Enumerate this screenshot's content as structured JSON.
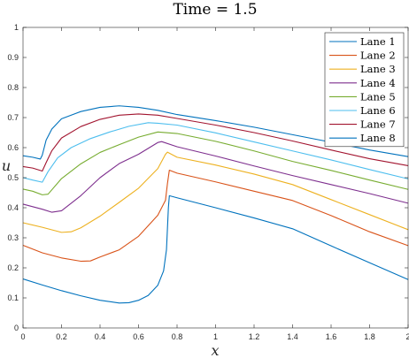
{
  "chart_data": {
    "type": "line",
    "title": "Time = 1.5",
    "xlabel": "x",
    "ylabel": "u",
    "xlim": [
      0,
      2
    ],
    "ylim": [
      0,
      1
    ],
    "grid": false,
    "legend_position": "top-right",
    "x_ticks": [
      "0",
      "0.2",
      "0.4",
      "0.6",
      "0.8",
      "1",
      "1.2",
      "1.4",
      "1.6",
      "1.8",
      "2"
    ],
    "y_ticks": [
      "0",
      "0.1",
      "0.2",
      "0.3",
      "0.4",
      "0.5",
      "0.6",
      "0.7",
      "0.8",
      "0.9",
      "1"
    ],
    "series": [
      {
        "name": "Lane 1",
        "color": "#0072BD",
        "points": [
          [
            0,
            0.163
          ],
          [
            0.1,
            0.143
          ],
          [
            0.2,
            0.124
          ],
          [
            0.3,
            0.107
          ],
          [
            0.4,
            0.092
          ],
          [
            0.5,
            0.083
          ],
          [
            0.55,
            0.084
          ],
          [
            0.6,
            0.092
          ],
          [
            0.65,
            0.108
          ],
          [
            0.7,
            0.142
          ],
          [
            0.73,
            0.19
          ],
          [
            0.745,
            0.26
          ],
          [
            0.75,
            0.33
          ],
          [
            0.755,
            0.4
          ],
          [
            0.76,
            0.44
          ],
          [
            0.8,
            0.433
          ],
          [
            1,
            0.4
          ],
          [
            1.2,
            0.366
          ],
          [
            1.4,
            0.33
          ],
          [
            1.6,
            0.273
          ],
          [
            1.8,
            0.217
          ],
          [
            2,
            0.161
          ]
        ]
      },
      {
        "name": "Lane 2",
        "color": "#D95319",
        "points": [
          [
            0,
            0.275
          ],
          [
            0.1,
            0.25
          ],
          [
            0.2,
            0.233
          ],
          [
            0.3,
            0.222
          ],
          [
            0.35,
            0.223
          ],
          [
            0.4,
            0.236
          ],
          [
            0.5,
            0.26
          ],
          [
            0.6,
            0.305
          ],
          [
            0.7,
            0.375
          ],
          [
            0.74,
            0.425
          ],
          [
            0.75,
            0.48
          ],
          [
            0.76,
            0.525
          ],
          [
            0.8,
            0.515
          ],
          [
            1,
            0.486
          ],
          [
            1.2,
            0.455
          ],
          [
            1.4,
            0.424
          ],
          [
            1.6,
            0.374
          ],
          [
            1.8,
            0.32
          ],
          [
            2,
            0.274
          ]
        ]
      },
      {
        "name": "Lane 3",
        "color": "#EDB120",
        "points": [
          [
            0,
            0.35
          ],
          [
            0.1,
            0.335
          ],
          [
            0.2,
            0.318
          ],
          [
            0.25,
            0.32
          ],
          [
            0.3,
            0.333
          ],
          [
            0.4,
            0.372
          ],
          [
            0.5,
            0.418
          ],
          [
            0.6,
            0.465
          ],
          [
            0.7,
            0.53
          ],
          [
            0.74,
            0.578
          ],
          [
            0.75,
            0.585
          ],
          [
            0.8,
            0.568
          ],
          [
            1,
            0.542
          ],
          [
            1.2,
            0.512
          ],
          [
            1.4,
            0.477
          ],
          [
            1.6,
            0.427
          ],
          [
            1.8,
            0.377
          ],
          [
            2,
            0.327
          ]
        ]
      },
      {
        "name": "Lane 4",
        "color": "#7E2F8E",
        "points": [
          [
            0,
            0.412
          ],
          [
            0.1,
            0.395
          ],
          [
            0.15,
            0.385
          ],
          [
            0.2,
            0.39
          ],
          [
            0.3,
            0.44
          ],
          [
            0.4,
            0.5
          ],
          [
            0.5,
            0.547
          ],
          [
            0.6,
            0.578
          ],
          [
            0.7,
            0.617
          ],
          [
            0.72,
            0.62
          ],
          [
            0.8,
            0.603
          ],
          [
            1,
            0.572
          ],
          [
            1.2,
            0.539
          ],
          [
            1.4,
            0.507
          ],
          [
            1.6,
            0.477
          ],
          [
            1.8,
            0.447
          ],
          [
            2,
            0.415
          ]
        ]
      },
      {
        "name": "Lane 5",
        "color": "#77AC30",
        "points": [
          [
            0,
            0.462
          ],
          [
            0.05,
            0.455
          ],
          [
            0.1,
            0.443
          ],
          [
            0.13,
            0.445
          ],
          [
            0.2,
            0.497
          ],
          [
            0.3,
            0.546
          ],
          [
            0.4,
            0.584
          ],
          [
            0.5,
            0.61
          ],
          [
            0.6,
            0.635
          ],
          [
            0.7,
            0.652
          ],
          [
            0.8,
            0.647
          ],
          [
            1,
            0.621
          ],
          [
            1.2,
            0.589
          ],
          [
            1.4,
            0.554
          ],
          [
            1.6,
            0.524
          ],
          [
            1.8,
            0.492
          ],
          [
            2,
            0.461
          ]
        ]
      },
      {
        "name": "Lane 6",
        "color": "#4DBEEE",
        "points": [
          [
            0,
            0.5
          ],
          [
            0.05,
            0.492
          ],
          [
            0.1,
            0.485
          ],
          [
            0.13,
            0.52
          ],
          [
            0.18,
            0.566
          ],
          [
            0.25,
            0.6
          ],
          [
            0.35,
            0.63
          ],
          [
            0.45,
            0.652
          ],
          [
            0.55,
            0.671
          ],
          [
            0.65,
            0.683
          ],
          [
            0.7,
            0.681
          ],
          [
            0.8,
            0.675
          ],
          [
            1,
            0.649
          ],
          [
            1.2,
            0.619
          ],
          [
            1.4,
            0.589
          ],
          [
            1.6,
            0.559
          ],
          [
            1.8,
            0.527
          ],
          [
            2,
            0.496
          ]
        ]
      },
      {
        "name": "Lane 7",
        "color": "#A2142F",
        "points": [
          [
            0,
            0.537
          ],
          [
            0.05,
            0.532
          ],
          [
            0.1,
            0.522
          ],
          [
            0.12,
            0.55
          ],
          [
            0.15,
            0.59
          ],
          [
            0.2,
            0.632
          ],
          [
            0.3,
            0.67
          ],
          [
            0.4,
            0.694
          ],
          [
            0.5,
            0.708
          ],
          [
            0.6,
            0.712
          ],
          [
            0.7,
            0.708
          ],
          [
            0.8,
            0.697
          ],
          [
            1,
            0.675
          ],
          [
            1.2,
            0.65
          ],
          [
            1.4,
            0.622
          ],
          [
            1.6,
            0.592
          ],
          [
            1.8,
            0.563
          ],
          [
            2,
            0.54
          ]
        ]
      },
      {
        "name": "Lane 8",
        "color": "#0072BD",
        "points": [
          [
            0,
            0.573
          ],
          [
            0.05,
            0.568
          ],
          [
            0.09,
            0.562
          ],
          [
            0.1,
            0.575
          ],
          [
            0.12,
            0.625
          ],
          [
            0.15,
            0.662
          ],
          [
            0.2,
            0.696
          ],
          [
            0.3,
            0.72
          ],
          [
            0.4,
            0.734
          ],
          [
            0.5,
            0.739
          ],
          [
            0.6,
            0.734
          ],
          [
            0.7,
            0.724
          ],
          [
            0.8,
            0.71
          ],
          [
            1,
            0.69
          ],
          [
            1.2,
            0.668
          ],
          [
            1.4,
            0.643
          ],
          [
            1.6,
            0.618
          ],
          [
            1.8,
            0.592
          ],
          [
            2,
            0.57
          ]
        ]
      }
    ]
  }
}
